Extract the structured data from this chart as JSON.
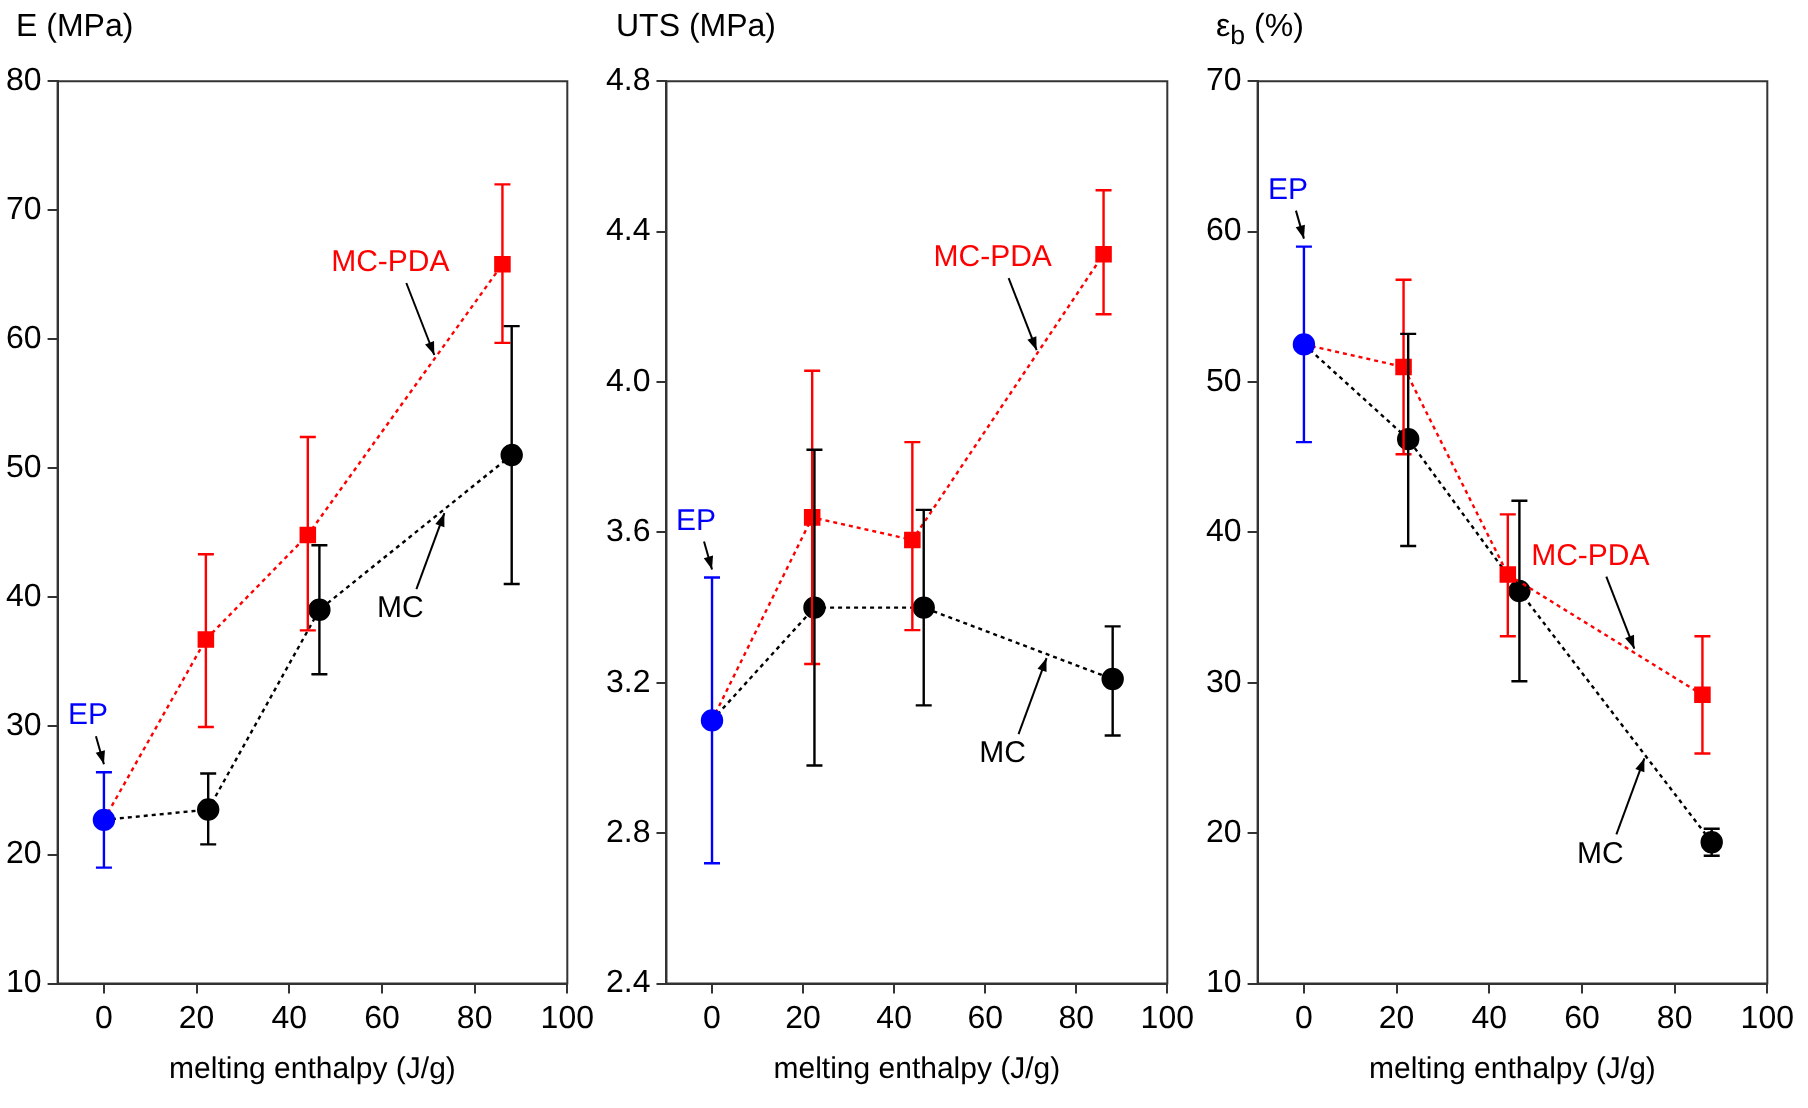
{
  "chart_data": [
    {
      "type": "line",
      "ylabel": "E (MPa)",
      "xlabel": "melting enthalpy (J/g)",
      "xlim": [
        -10,
        100
      ],
      "xticks": [
        0,
        20,
        40,
        60,
        80,
        100
      ],
      "ylim": [
        10,
        80
      ],
      "yticks": [
        10,
        20,
        30,
        40,
        50,
        60,
        70,
        80
      ],
      "grid": false,
      "legend": false,
      "series": [
        {
          "name": "EP",
          "type": "scatter",
          "color": "#0000ff",
          "x": [
            0
          ],
          "values": [
            22.7
          ],
          "errors": [
            [
              19,
              26.4
            ]
          ],
          "marker": "circle"
        },
        {
          "name": "MC-PDA",
          "color": "#ff0000",
          "x": [
            0,
            22,
            44,
            86
          ],
          "values": [
            22.7,
            36.7,
            44.8,
            65.8
          ],
          "errors": [
            null,
            [
              29.9,
              43.3
            ],
            [
              37.4,
              52.4
            ],
            [
              59.7,
              72
            ]
          ],
          "marker": "square",
          "line_style": "dotted"
        },
        {
          "name": "MC",
          "color": "#000000",
          "x": [
            0,
            22.5,
            46.5,
            88
          ],
          "values": [
            22.7,
            23.5,
            39,
            51
          ],
          "errors": [
            null,
            [
              20.8,
              26.3
            ],
            [
              34,
              44
            ],
            [
              41,
              61
            ]
          ],
          "marker": "circle",
          "line_style": "dotted"
        }
      ]
    },
    {
      "type": "line",
      "ylabel": "UTS (MPa)",
      "xlabel": "melting enthalpy (J/g)",
      "xlim": [
        -10,
        100
      ],
      "xticks": [
        0,
        20,
        40,
        60,
        80,
        100
      ],
      "ylim": [
        2.4,
        4.8
      ],
      "yticks": [
        2.4,
        2.8,
        3.2,
        3.6,
        {
          "value": 4.0,
          "label": "4.0"
        },
        4.4,
        4.8
      ],
      "grid": false,
      "legend": false,
      "series": [
        {
          "name": "EP",
          "type": "scatter",
          "color": "#0000ff",
          "x": [
            0
          ],
          "values": [
            3.1
          ],
          "errors": [
            [
              2.72,
              3.48
            ]
          ],
          "marker": "circle"
        },
        {
          "name": "MC-PDA",
          "color": "#ff0000",
          "x": [
            0,
            22,
            44,
            86
          ],
          "values": [
            3.1,
            3.64,
            3.58,
            4.34
          ],
          "errors": [
            null,
            [
              3.25,
              4.03
            ],
            [
              3.34,
              3.84
            ],
            [
              4.18,
              4.51
            ]
          ],
          "marker": "square",
          "line_style": "dotted"
        },
        {
          "name": "MC",
          "color": "#000000",
          "x": [
            0,
            22.5,
            46.5,
            88
          ],
          "values": [
            3.1,
            3.4,
            3.4,
            3.21
          ],
          "errors": [
            null,
            [
              2.98,
              3.82
            ],
            [
              3.14,
              3.66
            ],
            [
              3.06,
              3.35
            ]
          ],
          "marker": "circle",
          "line_style": "dotted"
        }
      ]
    },
    {
      "type": "line",
      "ylabel": "ε$_{b}$ (%)",
      "xlabel": "melting enthalpy (J/g)",
      "xlim": [
        -10,
        100
      ],
      "xticks": [
        0,
        20,
        40,
        60,
        80,
        100
      ],
      "ylim": [
        10,
        70
      ],
      "yticks": [
        10,
        20,
        30,
        40,
        50,
        60,
        70
      ],
      "grid": false,
      "legend": false,
      "series": [
        {
          "name": "EP",
          "type": "scatter",
          "color": "#0000ff",
          "x": [
            0
          ],
          "values": [
            52.5
          ],
          "errors": [
            [
              46,
              59
            ]
          ],
          "marker": "circle"
        },
        {
          "name": "MC-PDA",
          "color": "#ff0000",
          "x": [
            0,
            21.5,
            44,
            86
          ],
          "values": [
            52.5,
            51,
            37.2,
            29.2
          ],
          "errors": [
            null,
            [
              45.2,
              56.8
            ],
            [
              33.1,
              41.2
            ],
            [
              25.3,
              33.1
            ]
          ],
          "marker": "square",
          "line_style": "dotted"
        },
        {
          "name": "MC",
          "color": "#000000",
          "x": [
            0,
            22.5,
            46.5,
            88
          ],
          "values": [
            52.5,
            46.2,
            36.1,
            19.4
          ],
          "errors": [
            null,
            [
              39.1,
              53.2
            ],
            [
              30.1,
              42.1
            ],
            [
              18.5,
              20.3
            ]
          ],
          "marker": "circle",
          "line_style": "dotted"
        }
      ]
    }
  ]
}
